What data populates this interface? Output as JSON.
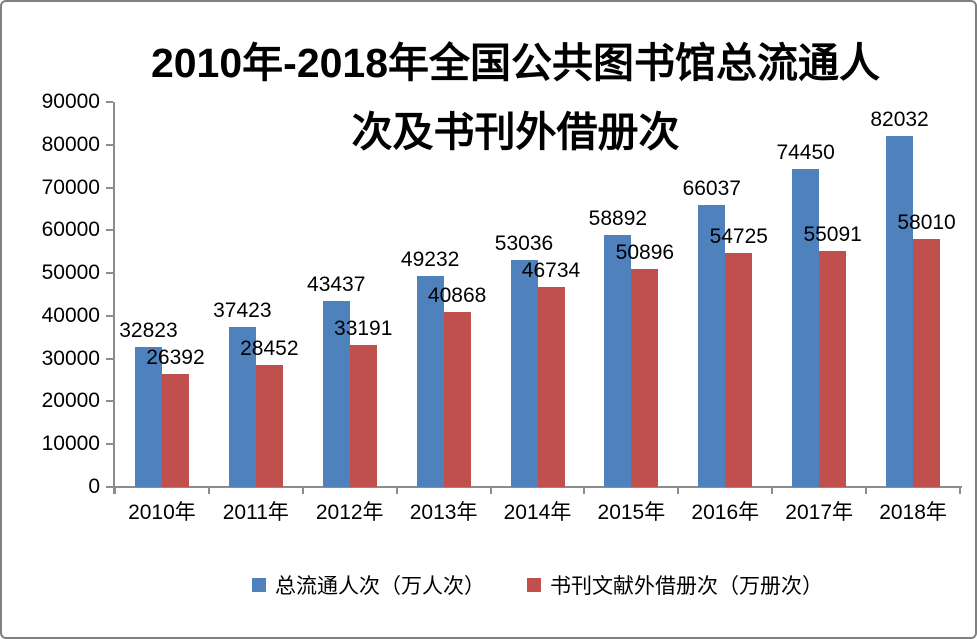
{
  "title": {
    "lines": [
      "2010年-2018年全国公共图书馆总流通人",
      "次及书刊外借册次"
    ]
  },
  "chart_data": {
    "type": "bar",
    "title": "2010年-2018年全国公共图书馆总流通人次及书刊外借册次",
    "categories": [
      "2010年",
      "2011年",
      "2012年",
      "2013年",
      "2014年",
      "2015年",
      "2016年",
      "2017年",
      "2018年"
    ],
    "series": [
      {
        "name": "总流通人次（万人次）",
        "color": "#4F81BD",
        "values": [
          32823,
          37423,
          43437,
          49232,
          53036,
          58892,
          66037,
          74450,
          82032
        ]
      },
      {
        "name": "书刊文献外借册次（万册次）",
        "color": "#C0504D",
        "values": [
          26392,
          28452,
          33191,
          40868,
          46734,
          50896,
          54725,
          55091,
          58010
        ]
      }
    ],
    "ylim": [
      0,
      90000
    ],
    "ytick_step": 10000,
    "yticks": [
      90000,
      80000,
      70000,
      60000,
      50000,
      40000,
      30000,
      20000,
      10000,
      0
    ],
    "xlabel": "",
    "ylabel": "",
    "grid": false,
    "value_labels": true,
    "legend_position": "bottom",
    "colors": {
      "axis": "#8C8C8C",
      "text": "#000000",
      "frame_border": "#808080",
      "background": "#FFFFFF"
    }
  }
}
